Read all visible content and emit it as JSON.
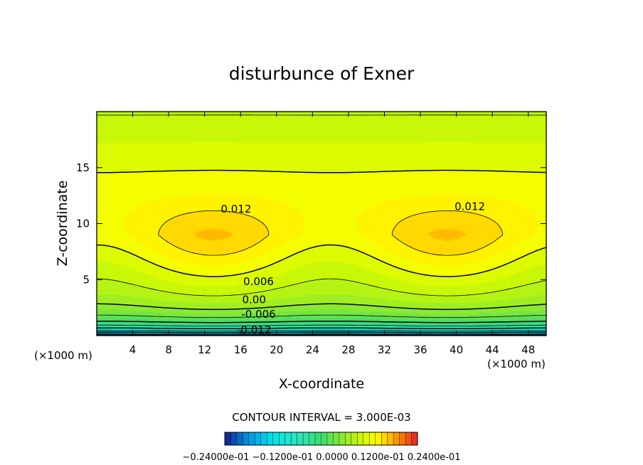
{
  "chart_data": {
    "type": "contour",
    "title": "disturbunce of Exner",
    "xlabel": "X-coordinate",
    "ylabel": "Z-coordinate",
    "x_unit": "(×1000 m)",
    "x_unit_right": "(×1000 m)",
    "xlim": [
      0,
      50
    ],
    "ylim": [
      0,
      20
    ],
    "x_ticks": [
      4,
      8,
      12,
      16,
      20,
      24,
      28,
      32,
      36,
      40,
      44,
      48
    ],
    "y_ticks": [
      5,
      10,
      15
    ],
    "contour_interval_text": "CONTOUR INTERVAL = 3.000E-03",
    "contour_labels": [
      {
        "text": "0.012",
        "x": 15.5,
        "z": 11.0
      },
      {
        "text": "0.012",
        "x": 41.5,
        "z": 11.2
      },
      {
        "text": "0.006",
        "x": 18.0,
        "z": 4.5
      },
      {
        "text": "0.00",
        "x": 17.5,
        "z": 2.9
      },
      {
        "text": "-0.006",
        "x": 18.0,
        "z": 1.6
      },
      {
        "text": "-0.012",
        "x": 17.5,
        "z": 0.2
      }
    ],
    "field_description": "Two positive Exner-perturbation maxima near x≈13 and x≈39 (×1000 m) at z≈9, decreasing to negative values near the surface",
    "maxima": [
      {
        "x": 13,
        "z": 8.8
      },
      {
        "x": 39,
        "z": 8.8
      }
    ],
    "colorbar": {
      "min": -0.024,
      "max": 0.024,
      "labels_text": "−0.24000e-01 −0.1200e-01 0.0000 0.1200e-01 0.2400e-01"
    }
  },
  "colors": {
    "frame": "#000000",
    "background": "#ffffff"
  }
}
